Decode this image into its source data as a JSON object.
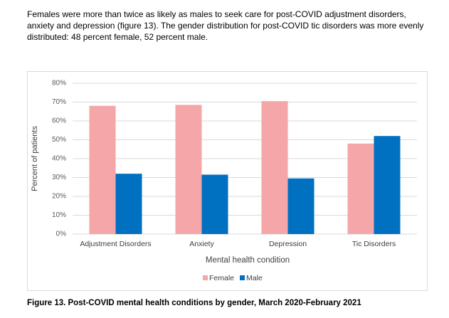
{
  "paragraph": "Females were more than twice as likely as males to seek care for post-COVID adjustment disorders, anxiety and depression (figure 13). The gender distribution for post-COVID tic disorders was more evenly distributed: 48 percent female, 52 percent male.",
  "chart_data": {
    "type": "bar",
    "categories": [
      "Adjustment Disorders",
      "Anxiety",
      "Depression",
      "Tic Disorders"
    ],
    "series": [
      {
        "name": "Female",
        "color": "#f4a6a9",
        "values": [
          68,
          68.5,
          70.5,
          48
        ]
      },
      {
        "name": "Male",
        "color": "#0070c0",
        "values": [
          32,
          31.5,
          29.5,
          52
        ]
      }
    ],
    "xlabel": "Mental health condition",
    "ylabel": "Percent of patients",
    "ylim": [
      0,
      80
    ],
    "yticks": [
      {
        "value": 0,
        "label": "0%"
      },
      {
        "value": 10,
        "label": "10%"
      },
      {
        "value": 20,
        "label": "20%"
      },
      {
        "value": 30,
        "label": "30%"
      },
      {
        "value": 40,
        "label": "40%"
      },
      {
        "value": 50,
        "label": "50%"
      },
      {
        "value": 60,
        "label": "60%"
      },
      {
        "value": 70,
        "label": "70%"
      },
      {
        "value": 80,
        "label": "80%"
      }
    ],
    "grid": true,
    "legend": "bottom"
  },
  "caption": "Figure 13. Post-COVID mental health conditions by gender, March 2020-February 2021"
}
